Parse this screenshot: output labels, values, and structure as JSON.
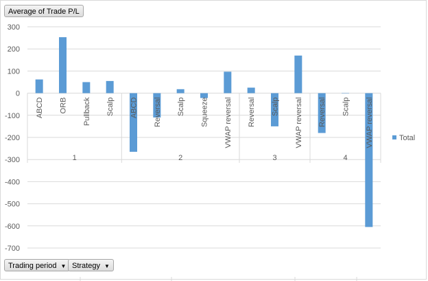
{
  "pivot": {
    "value_field": "Average of Trade P/L",
    "row_fields": [
      {
        "label": "Trading period",
        "icon": "dropdown-arrow-icon"
      },
      {
        "label": "Strategy",
        "icon": "dropdown-arrow-icon"
      }
    ],
    "legend_label": "Total"
  },
  "colors": {
    "bar": "#5b9bd5",
    "grid": "#d9d9d9",
    "text": "#595959"
  },
  "chart_data": {
    "type": "bar",
    "title": "",
    "xlabel": "",
    "ylabel": "",
    "ylim": [
      -700,
      300
    ],
    "yticks": [
      300,
      200,
      100,
      0,
      -100,
      -200,
      -300,
      -400,
      -500,
      -600,
      -700
    ],
    "grid": true,
    "legend_position": "right",
    "groups": [
      {
        "period": "1",
        "categories": [
          "ABCD",
          "ORB",
          "Pullback",
          "Scalp"
        ]
      },
      {
        "period": "2",
        "categories": [
          "ABCD",
          "Reversal",
          "Scalp",
          "Squeeze",
          "VWAP reversal"
        ]
      },
      {
        "period": "3",
        "categories": [
          "Reversal",
          "Scalp",
          "VWAP reversal"
        ]
      },
      {
        "period": "4",
        "categories": [
          "Reversal",
          "Scalp",
          "VWAP reversal"
        ]
      }
    ],
    "series": [
      {
        "name": "Total",
        "values": [
          62,
          253,
          50,
          55,
          -265,
          -110,
          18,
          -22,
          97,
          25,
          -150,
          170,
          -180,
          0,
          -605
        ]
      }
    ]
  }
}
